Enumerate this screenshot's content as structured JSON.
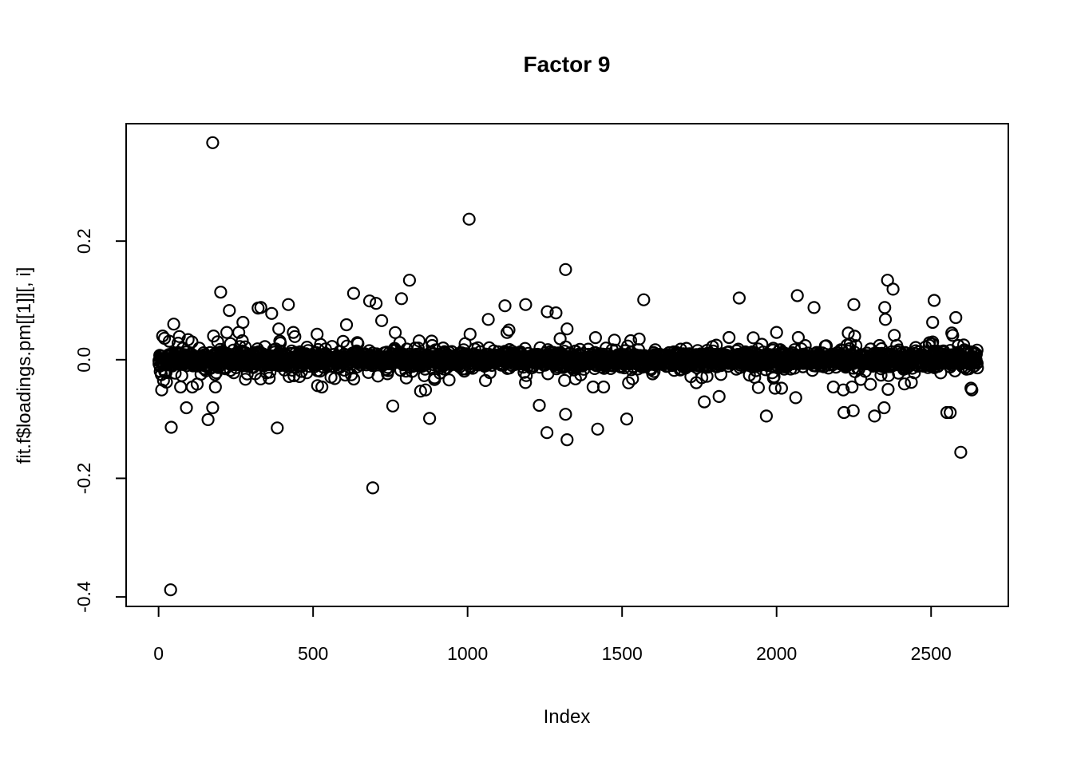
{
  "figure": {
    "background_color": "#ffffff",
    "stroke_color": "#000000"
  },
  "chart_data": {
    "type": "scatter",
    "title": "Factor 9",
    "xlabel": "Index",
    "ylabel": "fit.f$loadings.pm[[1]][, i]",
    "xlim": [
      -105,
      2750
    ],
    "ylim": [
      -0.416,
      0.398
    ],
    "x_ticks": [
      0,
      500,
      1000,
      1500,
      2000,
      2500
    ],
    "x_tick_labels": [
      "0",
      "500",
      "1000",
      "1500",
      "2000",
      "2500"
    ],
    "y_ticks": [
      0.2,
      0.0,
      -0.2,
      -0.4
    ],
    "y_tick_labels": [
      "0.2",
      "0.0",
      "-0.2",
      "-0.4"
    ],
    "grid": false,
    "legend": null,
    "marker": "open-circle",
    "marker_color": "#000000",
    "n_points_approx": 2650,
    "dense_band": {
      "description": "Dense horizontal band of overlapping open circles centered at y=0 spanning all indices; left third slightly more dispersed",
      "x_min": 1,
      "x_max": 2650,
      "y_center": 0.0,
      "y_spread_core": 0.006,
      "y_spread_mid": 0.013,
      "y_spread_halo": 0.022,
      "y_clamp": 0.046,
      "count": 2650,
      "seed": 42
    },
    "outliers": [
      [
        13,
        0.04
      ],
      [
        16,
        -0.035
      ],
      [
        10,
        -0.051
      ],
      [
        39,
        -0.388
      ],
      [
        41,
        -0.114
      ],
      [
        49,
        0.06
      ],
      [
        67,
        0.039
      ],
      [
        90,
        -0.081
      ],
      [
        108,
        0.03
      ],
      [
        160,
        -0.101
      ],
      [
        175,
        0.366
      ],
      [
        175,
        -0.081
      ],
      [
        178,
        0.04
      ],
      [
        201,
        0.114
      ],
      [
        229,
        0.083
      ],
      [
        271,
        0.032
      ],
      [
        273,
        0.063
      ],
      [
        281,
        -0.033
      ],
      [
        322,
        0.087
      ],
      [
        331,
        0.088
      ],
      [
        358,
        -0.031
      ],
      [
        366,
        0.078
      ],
      [
        384,
        -0.115
      ],
      [
        389,
        0.052
      ],
      [
        420,
        0.093
      ],
      [
        436,
        0.046
      ],
      [
        438,
        -0.027
      ],
      [
        441,
        0.039
      ],
      [
        513,
        0.043
      ],
      [
        608,
        0.059
      ],
      [
        610,
        0.023
      ],
      [
        631,
        0.112
      ],
      [
        683,
        0.099
      ],
      [
        693,
        -0.216
      ],
      [
        704,
        0.095
      ],
      [
        722,
        0.066
      ],
      [
        758,
        -0.078
      ],
      [
        786,
        0.103
      ],
      [
        812,
        0.134
      ],
      [
        848,
        -0.053
      ],
      [
        864,
        -0.051
      ],
      [
        877,
        -0.099
      ],
      [
        940,
        -0.034
      ],
      [
        992,
        0.027
      ],
      [
        1005,
        0.237
      ],
      [
        1008,
        0.043
      ],
      [
        1067,
        0.068
      ],
      [
        1070,
        0.02
      ],
      [
        1121,
        0.091
      ],
      [
        1134,
        0.05
      ],
      [
        1186,
        0.019
      ],
      [
        1188,
        0.093
      ],
      [
        1232,
        -0.077
      ],
      [
        1257,
        -0.123
      ],
      [
        1258,
        0.081
      ],
      [
        1260,
        0.017
      ],
      [
        1286,
        0.079
      ],
      [
        1314,
        -0.035
      ],
      [
        1317,
        0.152
      ],
      [
        1317,
        -0.092
      ],
      [
        1322,
        0.052
      ],
      [
        1322,
        -0.135
      ],
      [
        1421,
        -0.117
      ],
      [
        1515,
        -0.1
      ],
      [
        1518,
        0.023
      ],
      [
        1521,
        -0.039
      ],
      [
        1570,
        0.101
      ],
      [
        1766,
        -0.071
      ],
      [
        1775,
        -0.028
      ],
      [
        1814,
        -0.062
      ],
      [
        1879,
        0.104
      ],
      [
        1912,
        -0.026
      ],
      [
        1941,
        -0.047
      ],
      [
        1967,
        -0.095
      ],
      [
        1990,
        -0.031
      ],
      [
        1995,
        -0.048
      ],
      [
        2000,
        0.046
      ],
      [
        2016,
        -0.048
      ],
      [
        2062,
        -0.064
      ],
      [
        2067,
        0.108
      ],
      [
        2121,
        0.088
      ],
      [
        2216,
        -0.051
      ],
      [
        2218,
        -0.089
      ],
      [
        2232,
        0.045
      ],
      [
        2248,
        -0.086
      ],
      [
        2250,
        0.093
      ],
      [
        2304,
        0.018
      ],
      [
        2317,
        -0.095
      ],
      [
        2333,
        0.024
      ],
      [
        2338,
        -0.026
      ],
      [
        2348,
        -0.081
      ],
      [
        2350,
        0.088
      ],
      [
        2352,
        0.068
      ],
      [
        2359,
        0.134
      ],
      [
        2361,
        -0.05
      ],
      [
        2377,
        0.119
      ],
      [
        2436,
        -0.038
      ],
      [
        2446,
        -0.022
      ],
      [
        2505,
        0.063
      ],
      [
        2510,
        0.1
      ],
      [
        2551,
        -0.089
      ],
      [
        2562,
        -0.089
      ],
      [
        2567,
        0.045
      ],
      [
        2570,
        0.041
      ],
      [
        2580,
        0.071
      ],
      [
        2588,
        0.024
      ],
      [
        2596,
        -0.156
      ],
      [
        2629,
        -0.048
      ],
      [
        2632,
        -0.051
      ]
    ]
  }
}
